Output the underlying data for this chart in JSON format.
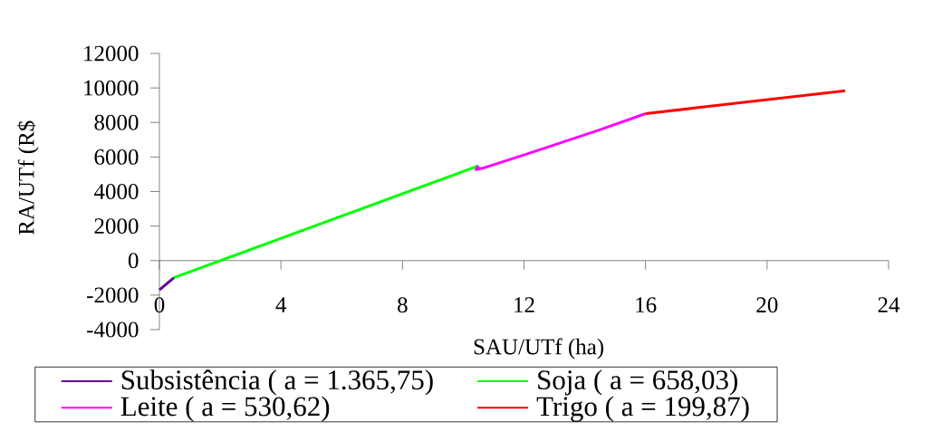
{
  "chart_data": {
    "type": "line",
    "xlabel": "SAU/UTf (ha)",
    "ylabel": "RA/UTf (R$",
    "xlim": [
      0,
      24
    ],
    "xticks": [
      0,
      4,
      8,
      12,
      16,
      20,
      24
    ],
    "ylim": [
      -4000,
      12000
    ],
    "yticks": [
      -4000,
      -2000,
      0,
      2000,
      4000,
      6000,
      8000,
      10000,
      12000
    ],
    "legend": "bottom",
    "marker": "none",
    "line_style": "solid",
    "series": [
      {
        "name": "Subsistência ( a = 1.365,75)",
        "color": "#660099",
        "x": [
          0,
          0.48
        ],
        "values": [
          -1700,
          -990
        ]
      },
      {
        "name": "Soja ( a = 658,03)",
        "color": "#00ff00",
        "x": [
          0.48,
          10.5
        ],
        "values": [
          -990,
          5490
        ]
      },
      {
        "name": "Leite ( a = 530,62)",
        "color": "#ff00ff",
        "x": [
          10.5,
          10.42,
          10.7,
          12,
          14.45,
          16
        ],
        "values": [
          5490,
          5270,
          5380,
          6120,
          7550,
          8510
        ]
      },
      {
        "name": "Trigo ( a = 199,87)",
        "color": "#ff0000",
        "x": [
          16,
          22.57
        ],
        "values": [
          8510,
          9840
        ]
      }
    ]
  }
}
